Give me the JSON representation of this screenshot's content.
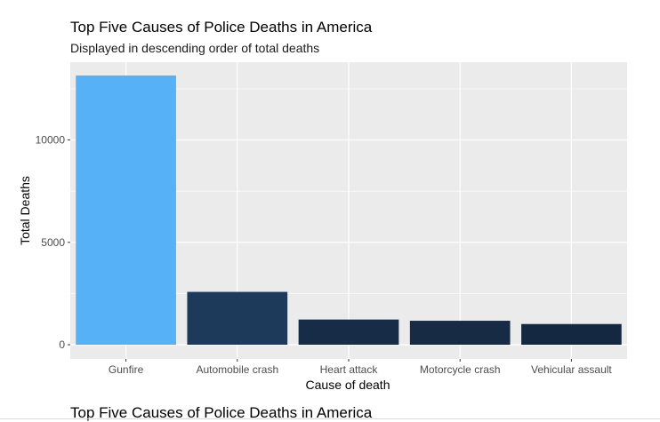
{
  "chart_data": {
    "type": "bar",
    "title": "Top Five Causes of Police Deaths in America",
    "subtitle": "Displayed in descending order of total deaths",
    "xlabel": "Cause of death",
    "ylabel": "Total Deaths",
    "categories": [
      "Gunfire",
      "Automobile crash",
      "Heart attack",
      "Motorcycle crash",
      "Vehicular assault"
    ],
    "values": [
      13150,
      2580,
      1230,
      1170,
      1010
    ],
    "colors": [
      "#56B1F7",
      "#1d3a5a",
      "#172d47",
      "#172b45",
      "#152841"
    ],
    "ylim": [
      0,
      13800
    ],
    "yticks": [
      0,
      5000,
      10000
    ],
    "ytick_labels": [
      "0",
      "5000",
      "10000"
    ],
    "grid": true,
    "panel_background": "#ebebeb",
    "grid_color": "#ffffff",
    "legend": "none"
  },
  "next_section": {
    "title": "Top Five Causes of Police Deaths in America"
  }
}
